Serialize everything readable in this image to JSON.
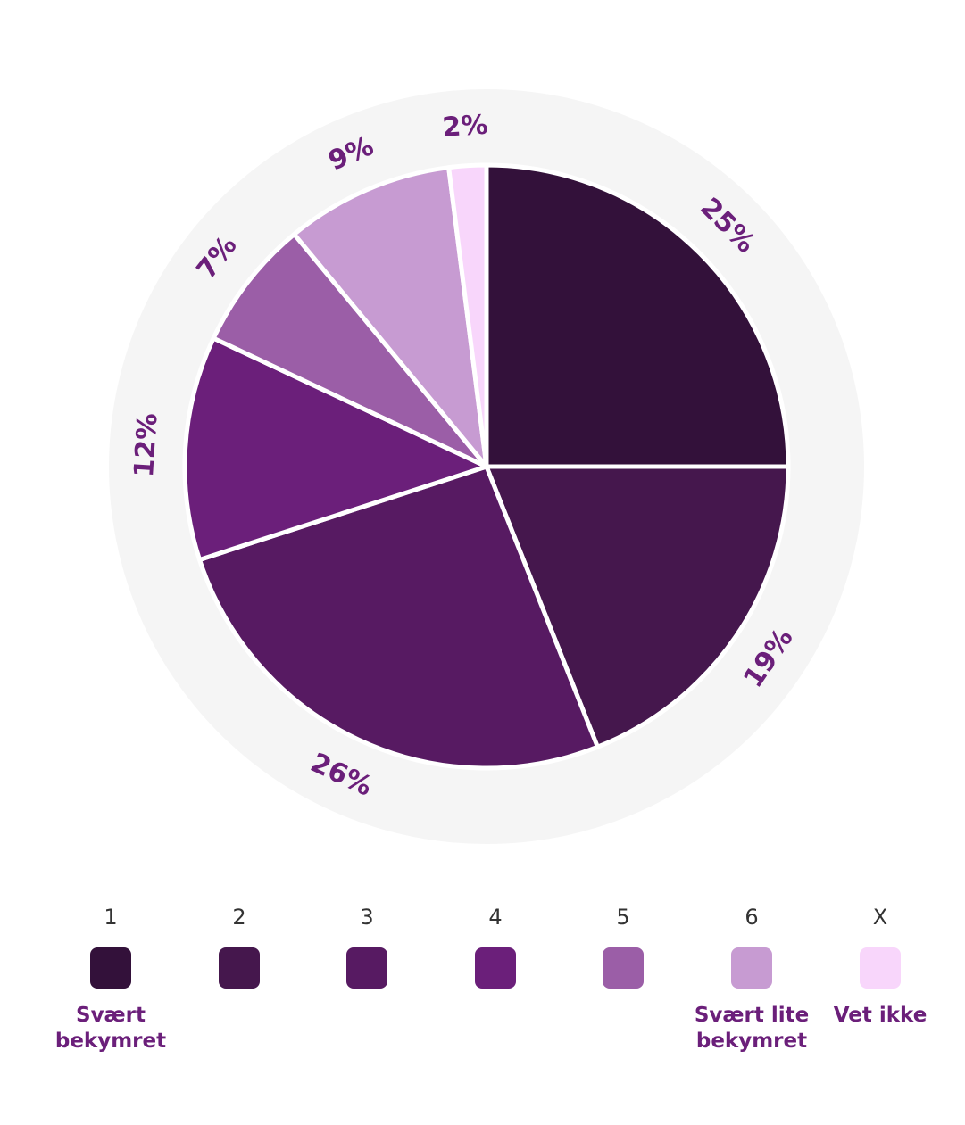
{
  "chart_data": {
    "type": "pie",
    "categories": [
      "1",
      "2",
      "3",
      "4",
      "5",
      "6",
      "X"
    ],
    "values": [
      25,
      19,
      26,
      12,
      7,
      9,
      2
    ],
    "value_labels": [
      "25%",
      "19%",
      "26%",
      "12%",
      "7%",
      "9%",
      "2%"
    ],
    "colors": [
      "#33113a",
      "#45174d",
      "#571a62",
      "#6b1f7a",
      "#9b5ea7",
      "#c79bd2",
      "#f8d6fb"
    ],
    "start": "12 o'clock",
    "direction": "clockwise",
    "label_color": "#6b1f7a",
    "ring_color": "#f5f5f5"
  },
  "legend": {
    "items": [
      {
        "number": "1",
        "label": "Svært bekymret"
      },
      {
        "number": "2",
        "label": ""
      },
      {
        "number": "3",
        "label": ""
      },
      {
        "number": "4",
        "label": ""
      },
      {
        "number": "5",
        "label": ""
      },
      {
        "number": "6",
        "label": "Svært lite bekymret"
      },
      {
        "number": "X",
        "label": "Vet ikke"
      }
    ]
  }
}
